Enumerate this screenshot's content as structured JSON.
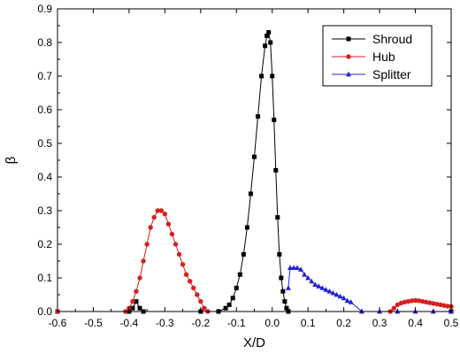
{
  "chart_data": {
    "type": "line",
    "title": "",
    "xlabel": "X/D",
    "ylabel": "β",
    "xlim": [
      -0.6,
      0.5
    ],
    "ylim": [
      0,
      0.9
    ],
    "xticks": [
      -0.6,
      -0.5,
      -0.4,
      -0.3,
      -0.2,
      -0.1,
      0.0,
      0.1,
      0.2,
      0.3,
      0.4,
      0.5
    ],
    "xtick_labels": [
      "-0.6",
      "-0.5",
      "-0.4",
      "-0.3",
      "-0.2",
      "-0.1",
      "0.0",
      "0.1",
      "0.2",
      "0.3",
      "0.4",
      "0.5"
    ],
    "yticks": [
      0.0,
      0.1,
      0.2,
      0.3,
      0.4,
      0.5,
      0.6,
      0.7,
      0.8,
      0.9
    ],
    "ytick_labels": [
      "0.0",
      "0.1",
      "0.2",
      "0.3",
      "0.4",
      "0.5",
      "0.6",
      "0.7",
      "0.8",
      "0.9"
    ],
    "grid": false,
    "legend_position": "top-right",
    "series": [
      {
        "name": "Shroud",
        "color": "#000000",
        "marker": "square",
        "x": [
          -0.6,
          -0.4,
          -0.39,
          -0.38,
          -0.37,
          -0.36,
          -0.2,
          -0.15,
          -0.13,
          -0.12,
          -0.11,
          -0.1,
          -0.09,
          -0.08,
          -0.07,
          -0.06,
          -0.05,
          -0.04,
          -0.03,
          -0.02,
          -0.015,
          -0.01,
          -0.005,
          0.0,
          0.005,
          0.01,
          0.015,
          0.02,
          0.025,
          0.03,
          0.035,
          0.04,
          0.045,
          0.5
        ],
        "y": [
          0.0,
          0.0,
          0.01,
          0.03,
          0.01,
          0.0,
          0.0,
          0.0,
          0.01,
          0.02,
          0.04,
          0.07,
          0.11,
          0.17,
          0.25,
          0.35,
          0.46,
          0.58,
          0.7,
          0.79,
          0.82,
          0.83,
          0.8,
          0.7,
          0.57,
          0.42,
          0.28,
          0.17,
          0.1,
          0.06,
          0.03,
          0.01,
          0.0,
          0.0
        ]
      },
      {
        "name": "Hub",
        "color": "#d62020",
        "marker": "circle",
        "x": [
          -0.6,
          -0.41,
          -0.4,
          -0.39,
          -0.38,
          -0.37,
          -0.36,
          -0.35,
          -0.34,
          -0.33,
          -0.32,
          -0.31,
          -0.3,
          -0.29,
          -0.28,
          -0.27,
          -0.26,
          -0.25,
          -0.24,
          -0.23,
          -0.22,
          -0.21,
          -0.2,
          -0.19,
          -0.18,
          0.33,
          0.34,
          0.35,
          0.36,
          0.37,
          0.38,
          0.39,
          0.4,
          0.41,
          0.42,
          0.43,
          0.44,
          0.45,
          0.46,
          0.47,
          0.48,
          0.49,
          0.5
        ],
        "y": [
          0.0,
          0.0,
          0.01,
          0.03,
          0.06,
          0.1,
          0.15,
          0.2,
          0.25,
          0.28,
          0.3,
          0.3,
          0.29,
          0.26,
          0.23,
          0.2,
          0.17,
          0.14,
          0.11,
          0.09,
          0.07,
          0.05,
          0.03,
          0.01,
          0.0,
          0.0,
          0.01,
          0.02,
          0.025,
          0.028,
          0.03,
          0.032,
          0.033,
          0.032,
          0.03,
          0.028,
          0.026,
          0.024,
          0.022,
          0.02,
          0.018,
          0.016,
          0.015
        ]
      },
      {
        "name": "Splitter",
        "color": "#2020d8",
        "marker": "triangle",
        "x": [
          0.045,
          0.05,
          0.06,
          0.07,
          0.08,
          0.09,
          0.1,
          0.11,
          0.12,
          0.13,
          0.14,
          0.15,
          0.16,
          0.17,
          0.18,
          0.19,
          0.2,
          0.21,
          0.22,
          0.25,
          0.3,
          0.35,
          0.4,
          0.45,
          0.5
        ],
        "y": [
          0.07,
          0.13,
          0.13,
          0.13,
          0.125,
          0.11,
          0.1,
          0.09,
          0.08,
          0.075,
          0.07,
          0.065,
          0.06,
          0.055,
          0.05,
          0.045,
          0.04,
          0.032,
          0.028,
          0.0,
          0.0,
          0.0,
          0.0,
          0.0,
          0.0
        ]
      }
    ]
  }
}
